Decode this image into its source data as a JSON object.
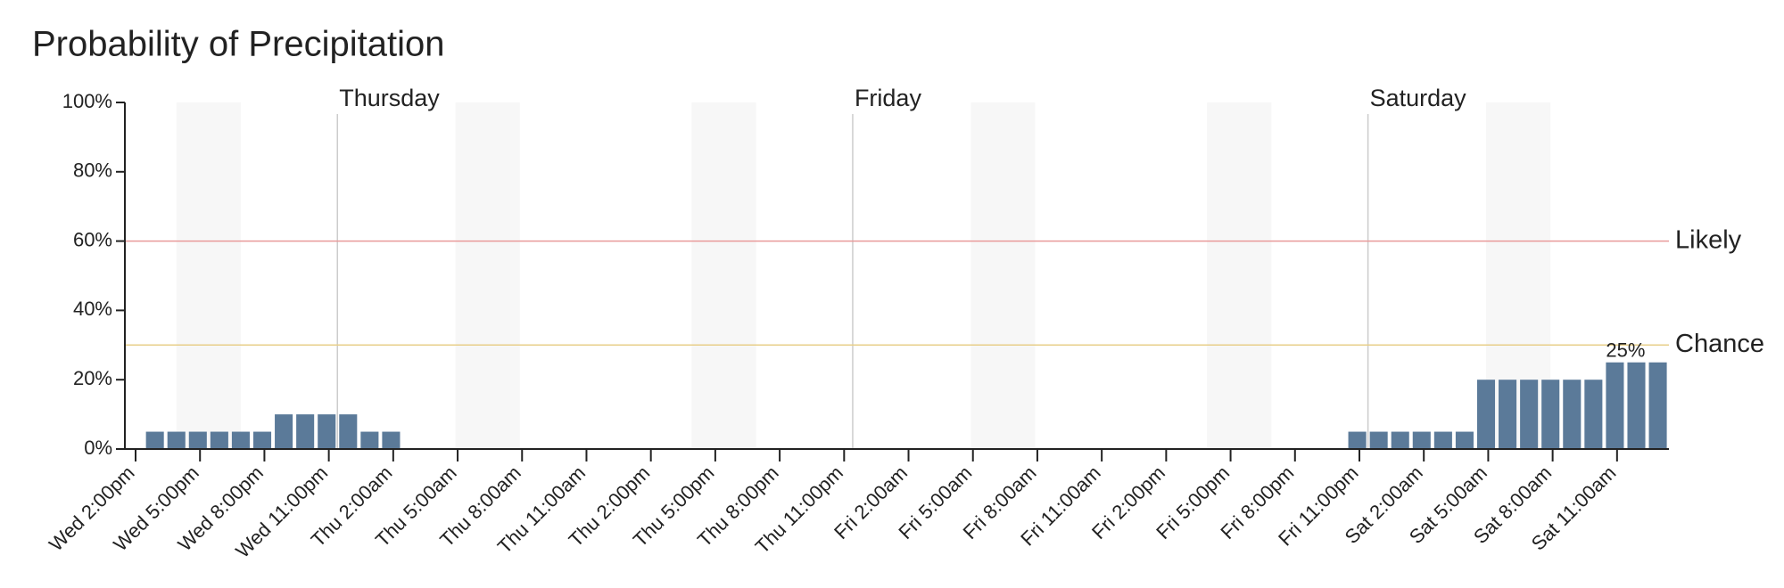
{
  "chart_data": {
    "type": "bar",
    "title": "Probability of Precipitation",
    "categories": [
      "Wed 2:00pm",
      null,
      null,
      "Wed 5:00pm",
      null,
      null,
      "Wed 8:00pm",
      null,
      null,
      "Wed 11:00pm",
      null,
      null,
      "Thu 2:00am",
      null,
      null,
      "Thu 5:00am",
      null,
      null,
      "Thu 8:00am",
      null,
      null,
      "Thu 11:00am",
      null,
      null,
      "Thu 2:00pm",
      null,
      null,
      "Thu 5:00pm",
      null,
      null,
      "Thu 8:00pm",
      null,
      null,
      "Thu 11:00pm",
      null,
      null,
      "Fri 2:00am",
      null,
      null,
      "Fri 5:00am",
      null,
      null,
      "Fri 8:00am",
      null,
      null,
      "Fri 11:00am",
      null,
      null,
      "Fri 2:00pm",
      null,
      null,
      "Fri 5:00pm",
      null,
      null,
      "Fri 8:00pm",
      null,
      null,
      "Fri 11:00pm",
      null,
      null,
      "Sat 2:00am",
      null,
      null,
      "Sat 5:00am",
      null,
      null,
      "Sat 8:00am",
      null,
      null,
      "Sat 11:00am",
      null,
      null
    ],
    "values": [
      0,
      5,
      5,
      5,
      5,
      5,
      5,
      10,
      10,
      10,
      10,
      5,
      5,
      0,
      0,
      0,
      0,
      0,
      0,
      0,
      0,
      0,
      0,
      0,
      0,
      0,
      0,
      0,
      0,
      0,
      0,
      0,
      0,
      0,
      0,
      0,
      0,
      0,
      0,
      0,
      0,
      0,
      0,
      0,
      0,
      0,
      0,
      0,
      0,
      0,
      0,
      0,
      0,
      0,
      0,
      0,
      0,
      5,
      5,
      5,
      5,
      5,
      5,
      20,
      20,
      20,
      20,
      20,
      20,
      25,
      25,
      25
    ],
    "value_labels": [
      null,
      null,
      null,
      null,
      null,
      null,
      null,
      null,
      null,
      null,
      null,
      null,
      null,
      null,
      null,
      null,
      null,
      null,
      null,
      null,
      null,
      null,
      null,
      null,
      null,
      null,
      null,
      null,
      null,
      null,
      null,
      null,
      null,
      null,
      null,
      null,
      null,
      null,
      null,
      null,
      null,
      null,
      null,
      null,
      null,
      null,
      null,
      null,
      null,
      null,
      null,
      null,
      null,
      null,
      null,
      null,
      null,
      null,
      null,
      null,
      null,
      null,
      null,
      null,
      null,
      null,
      null,
      null,
      null,
      "25%",
      null,
      null
    ],
    "color": "#5b7a99",
    "ylim": [
      0,
      100
    ],
    "yticks": [
      {
        "value": 0,
        "label": "0%"
      },
      {
        "value": 20,
        "label": "20%"
      },
      {
        "value": 40,
        "label": "40%"
      },
      {
        "value": 60,
        "label": "60%"
      },
      {
        "value": 80,
        "label": "80%"
      },
      {
        "value": 100,
        "label": "100%"
      }
    ],
    "day_labels": [
      "Thursday",
      "Friday",
      "Saturday"
    ],
    "thresholds": [
      {
        "label": "Likely",
        "value": 60,
        "color": "#e89a9a"
      },
      {
        "label": "Chance",
        "value": 30,
        "color": "#e8cf8a"
      }
    ]
  }
}
